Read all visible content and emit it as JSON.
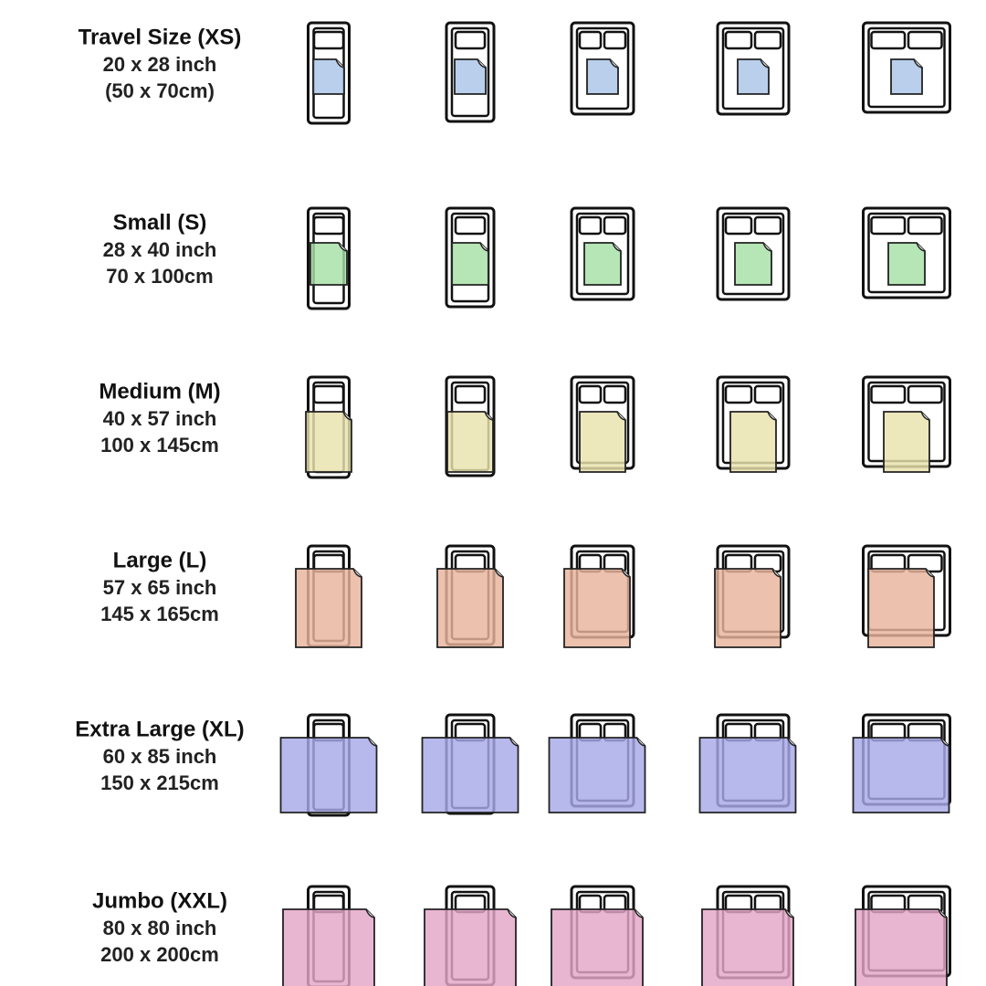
{
  "rows": [
    {
      "name": "Travel Size (XS)",
      "inch": "20 x 28 inch",
      "cm": "(50 x 70cm)",
      "color": "#a9c4e6"
    },
    {
      "name": "Small (S)",
      "inch": "28 x 40 inch",
      "cm": "70 x 100cm",
      "color": "#a6dfa6"
    },
    {
      "name": "Medium (M)",
      "inch": "40 x 57 inch",
      "cm": "100 x 145cm",
      "color": "#e9e2ad"
    },
    {
      "name": "Large (L)",
      "inch": "57 x 65 inch",
      "cm": "145 x 165cm",
      "color": "#e8b59c"
    },
    {
      "name": "Extra Large (XL)",
      "inch": "60 x 85 inch",
      "cm": "150 x 215cm",
      "color": "#a7a8e8"
    },
    {
      "name": "Jumbo (XXL)",
      "inch": "80 x 80 inch",
      "cm": "200 x 200cm",
      "color": "#e4a6c8"
    }
  ]
}
